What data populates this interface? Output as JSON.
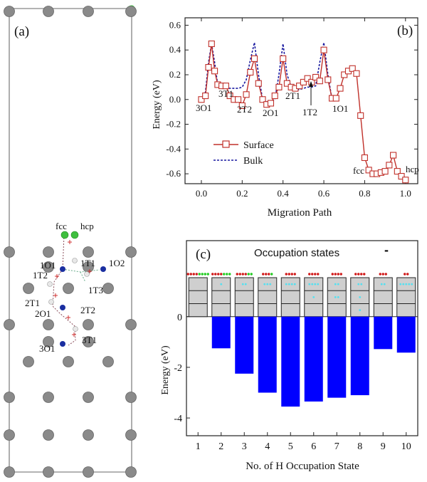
{
  "panel_a": {
    "label": "(a)",
    "site_labels": [
      "fcc",
      "hcp",
      "1O1",
      "1T1",
      "1O2",
      "1T2",
      "1T3",
      "2T1",
      "2O1",
      "2T2",
      "3T1",
      "3O1"
    ]
  },
  "panel_b": {
    "label": "(b)",
    "site_labels": [
      "3O1",
      "3T1",
      "2T2",
      "2O1",
      "2T1",
      "1T2",
      "1O1",
      "fcc",
      "hcp"
    ]
  },
  "panel_c": {
    "label": "(c)",
    "inset_title": "Occupation states",
    "inset_marker": "-"
  },
  "colors": {
    "surface": "#c0302a",
    "bulk": "#1a1aa0",
    "bar": "#0000ff",
    "box_fill": "#cfcfcf",
    "dot_red": "#d01818",
    "dot_green": "#22cc22",
    "dot_cyan": "#55e0f0"
  },
  "chart_data": [
    {
      "type": "line",
      "title": "",
      "xlabel": "Migration Path",
      "ylabel": "Energy (eV)",
      "xlim": [
        -0.08,
        1.06
      ],
      "ylim": [
        -0.68,
        0.66
      ],
      "xticks": [
        "0.0",
        "0.2",
        "0.4",
        "0.6",
        "0.8",
        "1.0"
      ],
      "xtick_values": [
        0,
        0.2,
        0.4,
        0.6,
        0.8,
        1.0
      ],
      "yticks": [
        "0.6",
        "0.4",
        "0.2",
        "0.0",
        "-0.2",
        "-0.4",
        "-0.6"
      ],
      "ytick_values": [
        0.6,
        0.4,
        0.2,
        0.0,
        -0.2,
        -0.4,
        -0.6
      ],
      "legend": {
        "position": "left-center"
      },
      "series": [
        {
          "name": "Surface",
          "style": "solid-square-markers",
          "x": [
            0.0,
            0.02,
            0.035,
            0.05,
            0.065,
            0.08,
            0.1,
            0.12,
            0.14,
            0.16,
            0.18,
            0.2,
            0.22,
            0.24,
            0.26,
            0.28,
            0.3,
            0.32,
            0.34,
            0.36,
            0.38,
            0.4,
            0.42,
            0.44,
            0.46,
            0.48,
            0.5,
            0.52,
            0.54,
            0.56,
            0.58,
            0.6,
            0.62,
            0.64,
            0.66,
            0.68,
            0.7,
            0.72,
            0.74,
            0.76,
            0.78,
            0.8,
            0.82,
            0.84,
            0.86,
            0.88,
            0.9,
            0.92,
            0.94,
            0.96,
            0.98,
            1.0
          ],
          "y": [
            0.0,
            0.03,
            0.26,
            0.45,
            0.23,
            0.12,
            0.11,
            0.11,
            0.03,
            0.0,
            0.0,
            -0.05,
            0.04,
            0.22,
            0.33,
            0.13,
            0.0,
            -0.04,
            -0.03,
            0.03,
            0.1,
            0.33,
            0.13,
            0.1,
            0.09,
            0.11,
            0.14,
            0.17,
            0.14,
            0.18,
            0.15,
            0.4,
            0.16,
            0.01,
            0.01,
            0.09,
            0.2,
            0.23,
            0.25,
            0.21,
            -0.13,
            -0.47,
            -0.57,
            -0.6,
            -0.6,
            -0.59,
            -0.58,
            -0.53,
            -0.45,
            -0.58,
            -0.62,
            -0.65
          ]
        },
        {
          "name": "Bulk",
          "style": "dashed",
          "x": [
            0.0,
            0.02,
            0.035,
            0.05,
            0.065,
            0.08,
            0.1,
            0.12,
            0.14,
            0.16,
            0.18,
            0.2,
            0.22,
            0.24,
            0.26,
            0.28,
            0.3,
            0.32,
            0.34,
            0.36,
            0.38,
            0.4,
            0.42,
            0.44,
            0.46,
            0.48,
            0.5,
            0.52,
            0.54,
            0.56,
            0.58,
            0.6,
            0.62,
            0.64
          ],
          "y": [
            0.0,
            0.06,
            0.3,
            0.45,
            0.3,
            0.12,
            0.1,
            0.1,
            0.09,
            0.09,
            0.09,
            0.1,
            0.16,
            0.32,
            0.46,
            0.2,
            0.0,
            -0.02,
            -0.02,
            0.0,
            0.2,
            0.45,
            0.2,
            0.1,
            0.08,
            0.08,
            0.09,
            0.1,
            0.1,
            0.11,
            0.3,
            0.46,
            0.2,
            0.0
          ]
        }
      ],
      "annotations": [
        "3O1",
        "3T1",
        "2T2",
        "2O1",
        "2T1",
        "1T2",
        "1O1",
        "fcc",
        "hcp"
      ]
    },
    {
      "type": "bar",
      "title": "",
      "xlabel": "No. of H Occupation State",
      "ylabel": "Energy (eV)",
      "categories": [
        "1",
        "2",
        "3",
        "4",
        "5",
        "6",
        "7",
        "8",
        "9",
        "10"
      ],
      "values": [
        0.0,
        -1.25,
        -2.25,
        -3.0,
        -3.55,
        -3.35,
        -3.2,
        -3.1,
        -1.28,
        -1.42
      ],
      "ylim": [
        -4.7,
        3.0
      ],
      "yticks": [
        "0",
        "-2",
        "-4"
      ],
      "ytick_values": [
        0,
        -2,
        -4
      ],
      "inset": {
        "title": "Occupation states",
        "top_dots_red": [
          4,
          4,
          4,
          3,
          4,
          4,
          4,
          4,
          3,
          2
        ],
        "top_dots_green": [
          4,
          3,
          2,
          1,
          0,
          0,
          0,
          0,
          0,
          0
        ],
        "cyan_dots": [
          [
            [],
            [],
            []
          ],
          [
            [
              1
            ],
            [],
            []
          ],
          [
            [
              2
            ],
            [],
            []
          ],
          [
            [
              3
            ],
            [],
            []
          ],
          [
            [
              4
            ],
            [],
            []
          ],
          [
            [
              4
            ],
            [
              1
            ],
            []
          ],
          [
            [
              2
            ],
            [
              2
            ],
            []
          ],
          [
            [
              2
            ],
            [
              1
            ],
            [
              1
            ]
          ],
          [
            [
              2
            ],
            [],
            []
          ],
          [
            [
              5
            ],
            [],
            []
          ]
        ]
      }
    }
  ]
}
